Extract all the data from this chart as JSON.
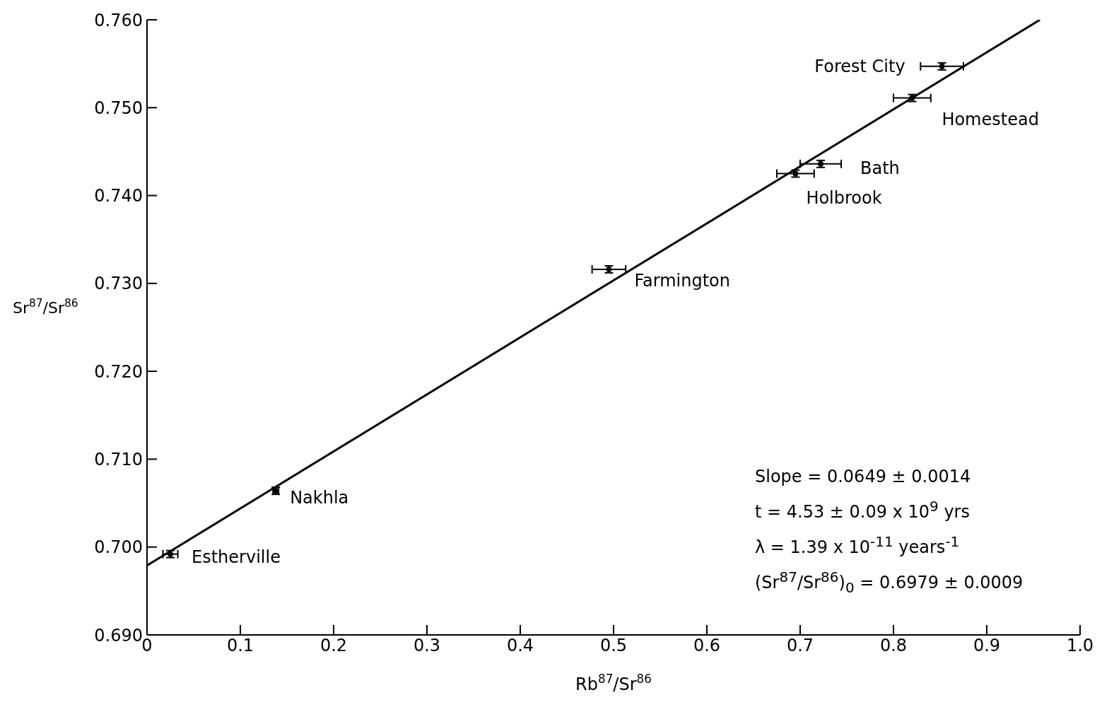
{
  "chart_data": {
    "type": "scatter",
    "xlabel": "Rb$^{87}$/Sr$^{86}$",
    "ylabel": "Sr$^{87}$/Sr$^{86}$",
    "xlim": [
      0,
      1
    ],
    "ylim": [
      0.69,
      0.76
    ],
    "xticks": [
      0,
      0.1,
      0.2,
      0.3,
      0.4,
      0.5,
      0.6,
      0.7,
      0.8,
      0.9,
      {
        "value": 1,
        "label": "1.0"
      }
    ],
    "yticks": [
      {
        "value": 0.69,
        "label": "0.690"
      },
      {
        "value": 0.7,
        "label": "0.700"
      },
      {
        "value": 0.71,
        "label": "0.710"
      },
      {
        "value": 0.72,
        "label": "0.720"
      },
      {
        "value": 0.73,
        "label": "0.730"
      },
      {
        "value": 0.74,
        "label": "0.740"
      },
      {
        "value": 0.75,
        "label": "0.750"
      },
      {
        "value": 0.76,
        "label": "0.760"
      }
    ],
    "marker": "circle",
    "series": [
      {
        "color": "#000000",
        "x": [
          0.025,
          0.138,
          0.495,
          0.695,
          0.722,
          0.82,
          0.852
        ],
        "values": [
          0.6992,
          0.7064,
          0.7316,
          0.7425,
          0.7436,
          0.7511,
          0.7547
        ],
        "errors": [
          0.0004,
          0.0004,
          0.0004,
          0.0004,
          0.0004,
          0.0004,
          0.0004
        ],
        "xerrors": [
          0.008,
          0.003,
          0.018,
          0.02,
          0.022,
          0.02,
          0.023
        ]
      },
      {
        "type": "line",
        "color": "#000000",
        "x": [
          0,
          0.957
        ],
        "values": [
          0.6979,
          0.76
        ],
        "marker": "none"
      }
    ],
    "annotations": [
      {
        "text": "Estherville",
        "x": 0.025,
        "y": 0.6992
      },
      {
        "text": "Nakhla",
        "x": 0.138,
        "y": 0.7064
      },
      {
        "text": "Farmington",
        "x": 0.495,
        "y": 0.7316
      },
      {
        "text": "Holbrook",
        "x": 0.695,
        "y": 0.7425
      },
      {
        "text": "Bath",
        "x": 0.722,
        "y": 0.7436
      },
      {
        "text": "Homestead",
        "x": 0.82,
        "y": 0.7511
      },
      {
        "text": "Forest City",
        "x": 0.852,
        "y": 0.7547
      },
      "Slope = 0.0649 ± 0.0014",
      "t = 4.53 ± 0.09 x 10$^{9}$ yrs",
      "λ = 1.39 x 10$^{-11}$ years$^{-1}$",
      "(Sr$^{87}$/Sr$^{86}$)$_{0}$ = 0.6979 ± 0.0009"
    ]
  }
}
